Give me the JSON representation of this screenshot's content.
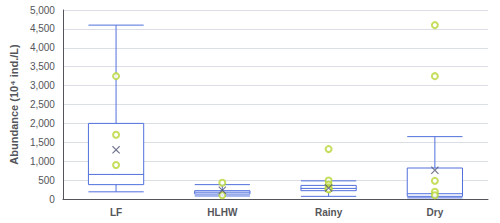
{
  "chart_data": {
    "type": "box",
    "ylabel": "Abundance (10⁴ ind./L)",
    "categories": [
      "LF",
      "HLHW",
      "Rainy",
      "Dry"
    ],
    "whisker_low": [
      190,
      80,
      70,
      30
    ],
    "q1": [
      380,
      130,
      220,
      70
    ],
    "median": [
      650,
      180,
      280,
      140
    ],
    "q3": [
      2000,
      220,
      360,
      820
    ],
    "whisker_high": [
      4600,
      380,
      480,
      1650
    ],
    "mean": [
      1300,
      230,
      290,
      760
    ],
    "outliers": [
      [
        3250,
        1700,
        900
      ],
      [
        430,
        100
      ],
      [
        1320,
        490,
        380,
        300,
        265,
        255
      ],
      [
        4600,
        3250,
        480,
        190,
        100
      ]
    ],
    "ylim": [
      0,
      5000
    ],
    "yticks": [
      0,
      500,
      1000,
      1500,
      2000,
      2500,
      3000,
      3500,
      4000,
      4500,
      5000
    ],
    "grid": true
  }
}
